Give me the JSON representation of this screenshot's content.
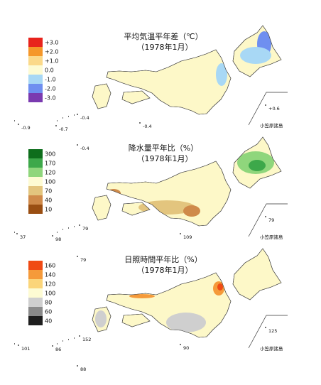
{
  "panels": [
    {
      "title": "平均気温平年差（℃）",
      "period": "（1978年1月）",
      "legend": [
        {
          "label": "+3.0",
          "color": "#e8231c"
        },
        {
          "label": "+2.0",
          "color": "#f5972a"
        },
        {
          "label": "+1.0",
          "color": "#fbd98a"
        },
        {
          "label": "0.0",
          "color": "#fdfbd3"
        },
        {
          "label": "-1.0",
          "color": "#a8d8f5"
        },
        {
          "label": "-2.0",
          "color": "#6f8ff0"
        },
        {
          "label": "-3.0",
          "color": "#7a3ab0"
        }
      ],
      "stations": [
        "-0.9",
        "-0.7",
        "-0.4",
        "-0.4",
        "+0.6",
        "-0.4"
      ],
      "islands": "小笠原諸島"
    },
    {
      "title": "降水量平年比（%）",
      "period": "（1978年1月）",
      "legend": [
        {
          "label": "300",
          "color": "#0e6e1c"
        },
        {
          "label": "170",
          "color": "#3da84a"
        },
        {
          "label": "120",
          "color": "#8fd67c"
        },
        {
          "label": "100",
          "color": "#fdfbd3"
        },
        {
          "label": "70",
          "color": "#e3c57e"
        },
        {
          "label": "40",
          "color": "#cf8a4a"
        },
        {
          "label": "10",
          "color": "#9a4e12"
        }
      ],
      "stations": [
        "37",
        "98",
        "79",
        "109",
        "79",
        "79"
      ],
      "islands": "小笠原諸島"
    },
    {
      "title": "日照時間平年比（%）",
      "period": "（1978年1月）",
      "legend": [
        {
          "label": "160",
          "color": "#f04a14"
        },
        {
          "label": "140",
          "color": "#f59a3a"
        },
        {
          "label": "120",
          "color": "#fbd57a"
        },
        {
          "label": "100",
          "color": "#fdfbd3"
        },
        {
          "label": "80",
          "color": "#cfcfcf"
        },
        {
          "label": "60",
          "color": "#8a8a8a"
        },
        {
          "label": "40",
          "color": "#1e1e1e"
        }
      ],
      "stations": [
        "101",
        "86",
        "152",
        "90",
        "125",
        "88"
      ],
      "islands": "小笠原諸島"
    }
  ]
}
